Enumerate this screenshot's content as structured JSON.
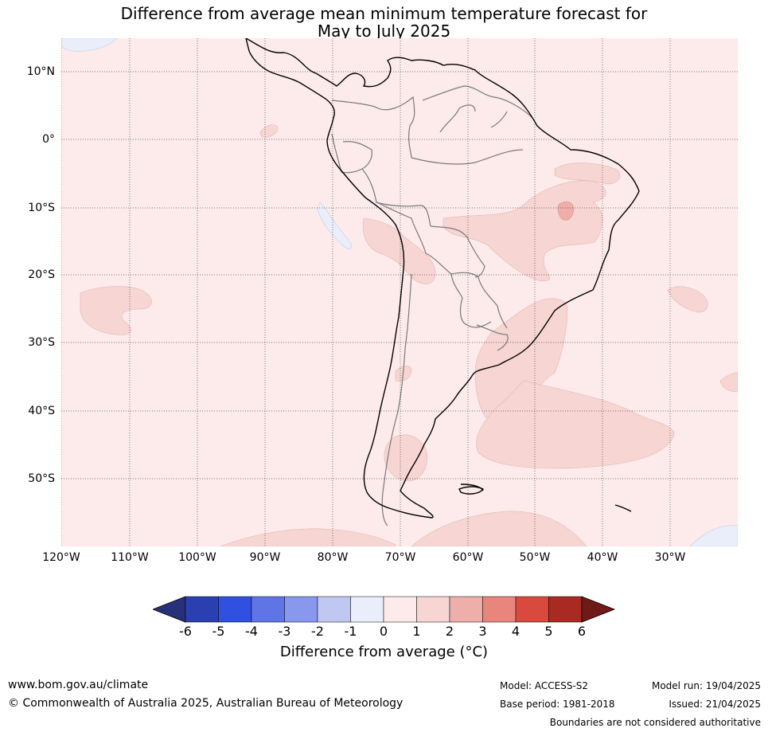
{
  "title_line1": "Difference from average mean minimum temperature forecast for",
  "title_line2": "May to July 2025",
  "lat_labels": [
    "10°N",
    "0°",
    "10°S",
    "20°S",
    "30°S",
    "40°S",
    "50°S"
  ],
  "lon_labels": [
    "120°W",
    "110°W",
    "100°W",
    "90°W",
    "80°W",
    "70°W",
    "60°W",
    "50°W",
    "40°W",
    "30°W"
  ],
  "colorbar": {
    "ticks": [
      "-6",
      "-5",
      "-4",
      "-3",
      "-2",
      "-1",
      "0",
      "1",
      "2",
      "3",
      "4",
      "5",
      "6"
    ],
    "colors": [
      "#26317a",
      "#2a40b0",
      "#3050e0",
      "#5f75e6",
      "#8898ec",
      "#c0c8f2",
      "#eaedfa",
      "#fcebea",
      "#f6d5d3",
      "#eeaeaa",
      "#e8867e",
      "#d94a3e",
      "#a82a22",
      "#6e1a17"
    ],
    "label": "Difference from average ($^\\circ$C)",
    "label_display": "Difference from average (°C)"
  },
  "legend_colors": {
    "base_anomaly": "#fcebea",
    "anomaly_1_2": "#f6d5d3",
    "anomaly_2_3": "#eeaeaa",
    "anomaly_neg": "#eaedfa"
  },
  "footer": {
    "url": "www.bom.gov.au/climate",
    "copyright": "© Commonwealth of Australia 2025, Australian Bureau of Meteorology",
    "model": "Model: ACCESS-S2",
    "base_period": "Base period: 1981-2018",
    "model_run": "Model run: 19/04/2025",
    "issued": "Issued: 21/04/2025",
    "disclaimer": "Boundaries are not considered authoritative"
  }
}
